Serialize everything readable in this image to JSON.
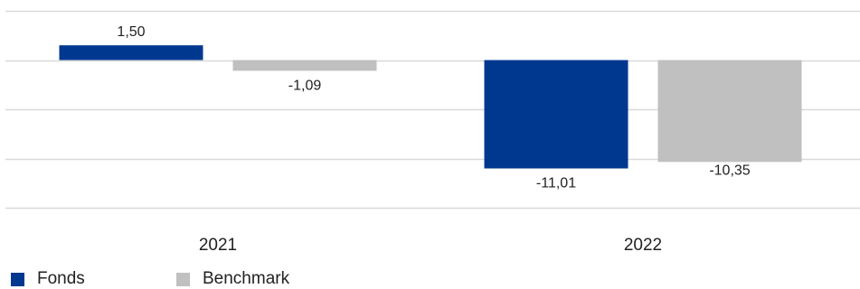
{
  "chart_data": {
    "type": "bar",
    "categories": [
      "2021",
      "2022"
    ],
    "series": [
      {
        "name": "Fonds",
        "values": [
          1.5,
          -11.01
        ],
        "labels": [
          "1,50",
          "-11,01"
        ]
      },
      {
        "name": "Benchmark",
        "values": [
          -1.09,
          -10.35
        ],
        "labels": [
          "-1,09",
          "-10,35"
        ]
      }
    ],
    "ylim": [
      -15,
      5
    ],
    "grid": true,
    "legend": "bottom-left"
  },
  "colors": {
    "fonds": "#003890",
    "benchmark": "#c0c0c0",
    "grid": "#d9d9d9",
    "text": "#222222"
  }
}
